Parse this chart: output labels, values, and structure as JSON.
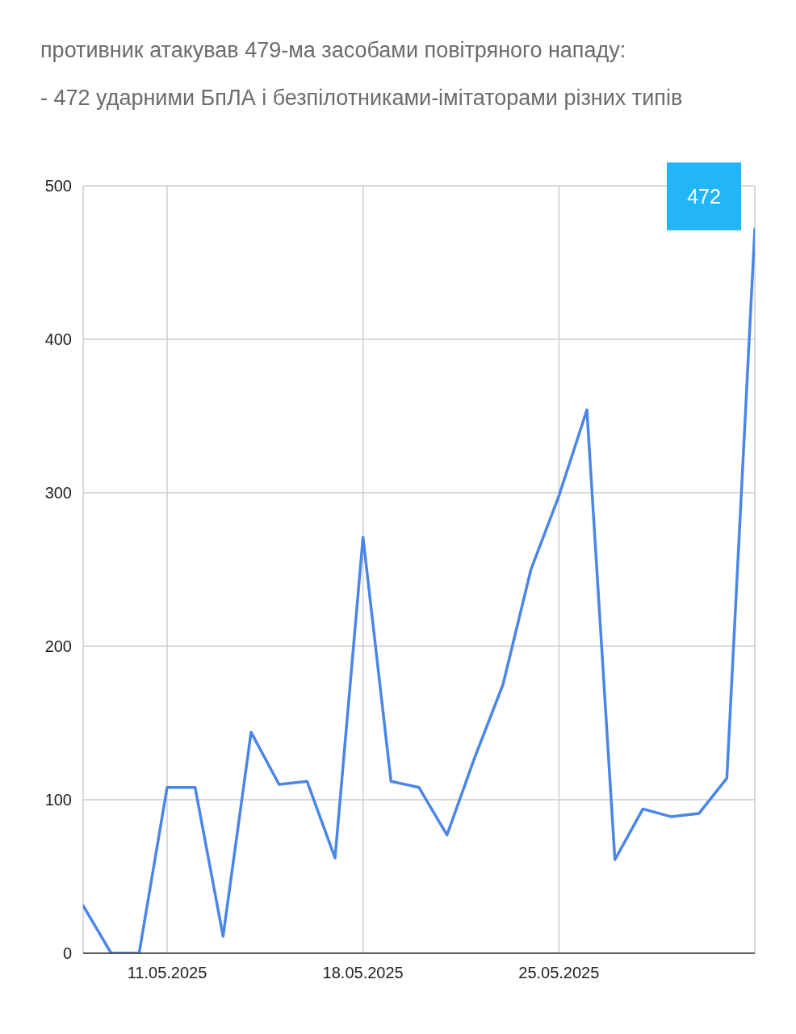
{
  "chart_data": {
    "type": "line",
    "title": "противник атакував 479-ма засобами повітряного нападу:",
    "subtitle": "- 472 ударними БпЛА і безпілотниками-імітаторами різних типів",
    "x": [
      "2025-05-08",
      "2025-05-09",
      "2025-05-10",
      "2025-05-11",
      "2025-05-12",
      "2025-05-13",
      "2025-05-14",
      "2025-05-15",
      "2025-05-16",
      "2025-05-17",
      "2025-05-18",
      "2025-05-19",
      "2025-05-20",
      "2025-05-21",
      "2025-05-22",
      "2025-05-23",
      "2025-05-24",
      "2025-05-25",
      "2025-05-26",
      "2025-05-27",
      "2025-05-28",
      "2025-05-29",
      "2025-05-30",
      "2025-05-31",
      "2025-06-01"
    ],
    "values": [
      31,
      0,
      0,
      108,
      108,
      11,
      144,
      110,
      112,
      62,
      271,
      112,
      108,
      77,
      128,
      175,
      250,
      298,
      354,
      61,
      94,
      89,
      91,
      114,
      472
    ],
    "color": "#4a86e8",
    "value_labels": [
      null,
      null,
      null,
      null,
      null,
      null,
      null,
      null,
      null,
      null,
      null,
      null,
      null,
      null,
      null,
      null,
      null,
      null,
      null,
      null,
      null,
      null,
      null,
      null,
      "472"
    ],
    "xlim": [
      "2025-05-08",
      "2025-06-01"
    ],
    "xticks": [
      {
        "value": "2025-05-11",
        "label": "11.05.2025"
      },
      {
        "value": "2025-05-18",
        "label": "18.05.2025"
      },
      {
        "value": "2025-05-25",
        "label": "25.05.2025"
      },
      {
        "value": "2025-06-01",
        "label": null
      }
    ],
    "ylim": [
      0,
      500
    ],
    "yticks": [
      0,
      100,
      200,
      300,
      400,
      500
    ],
    "grid": true,
    "marker": "none",
    "line_style": "solid"
  }
}
